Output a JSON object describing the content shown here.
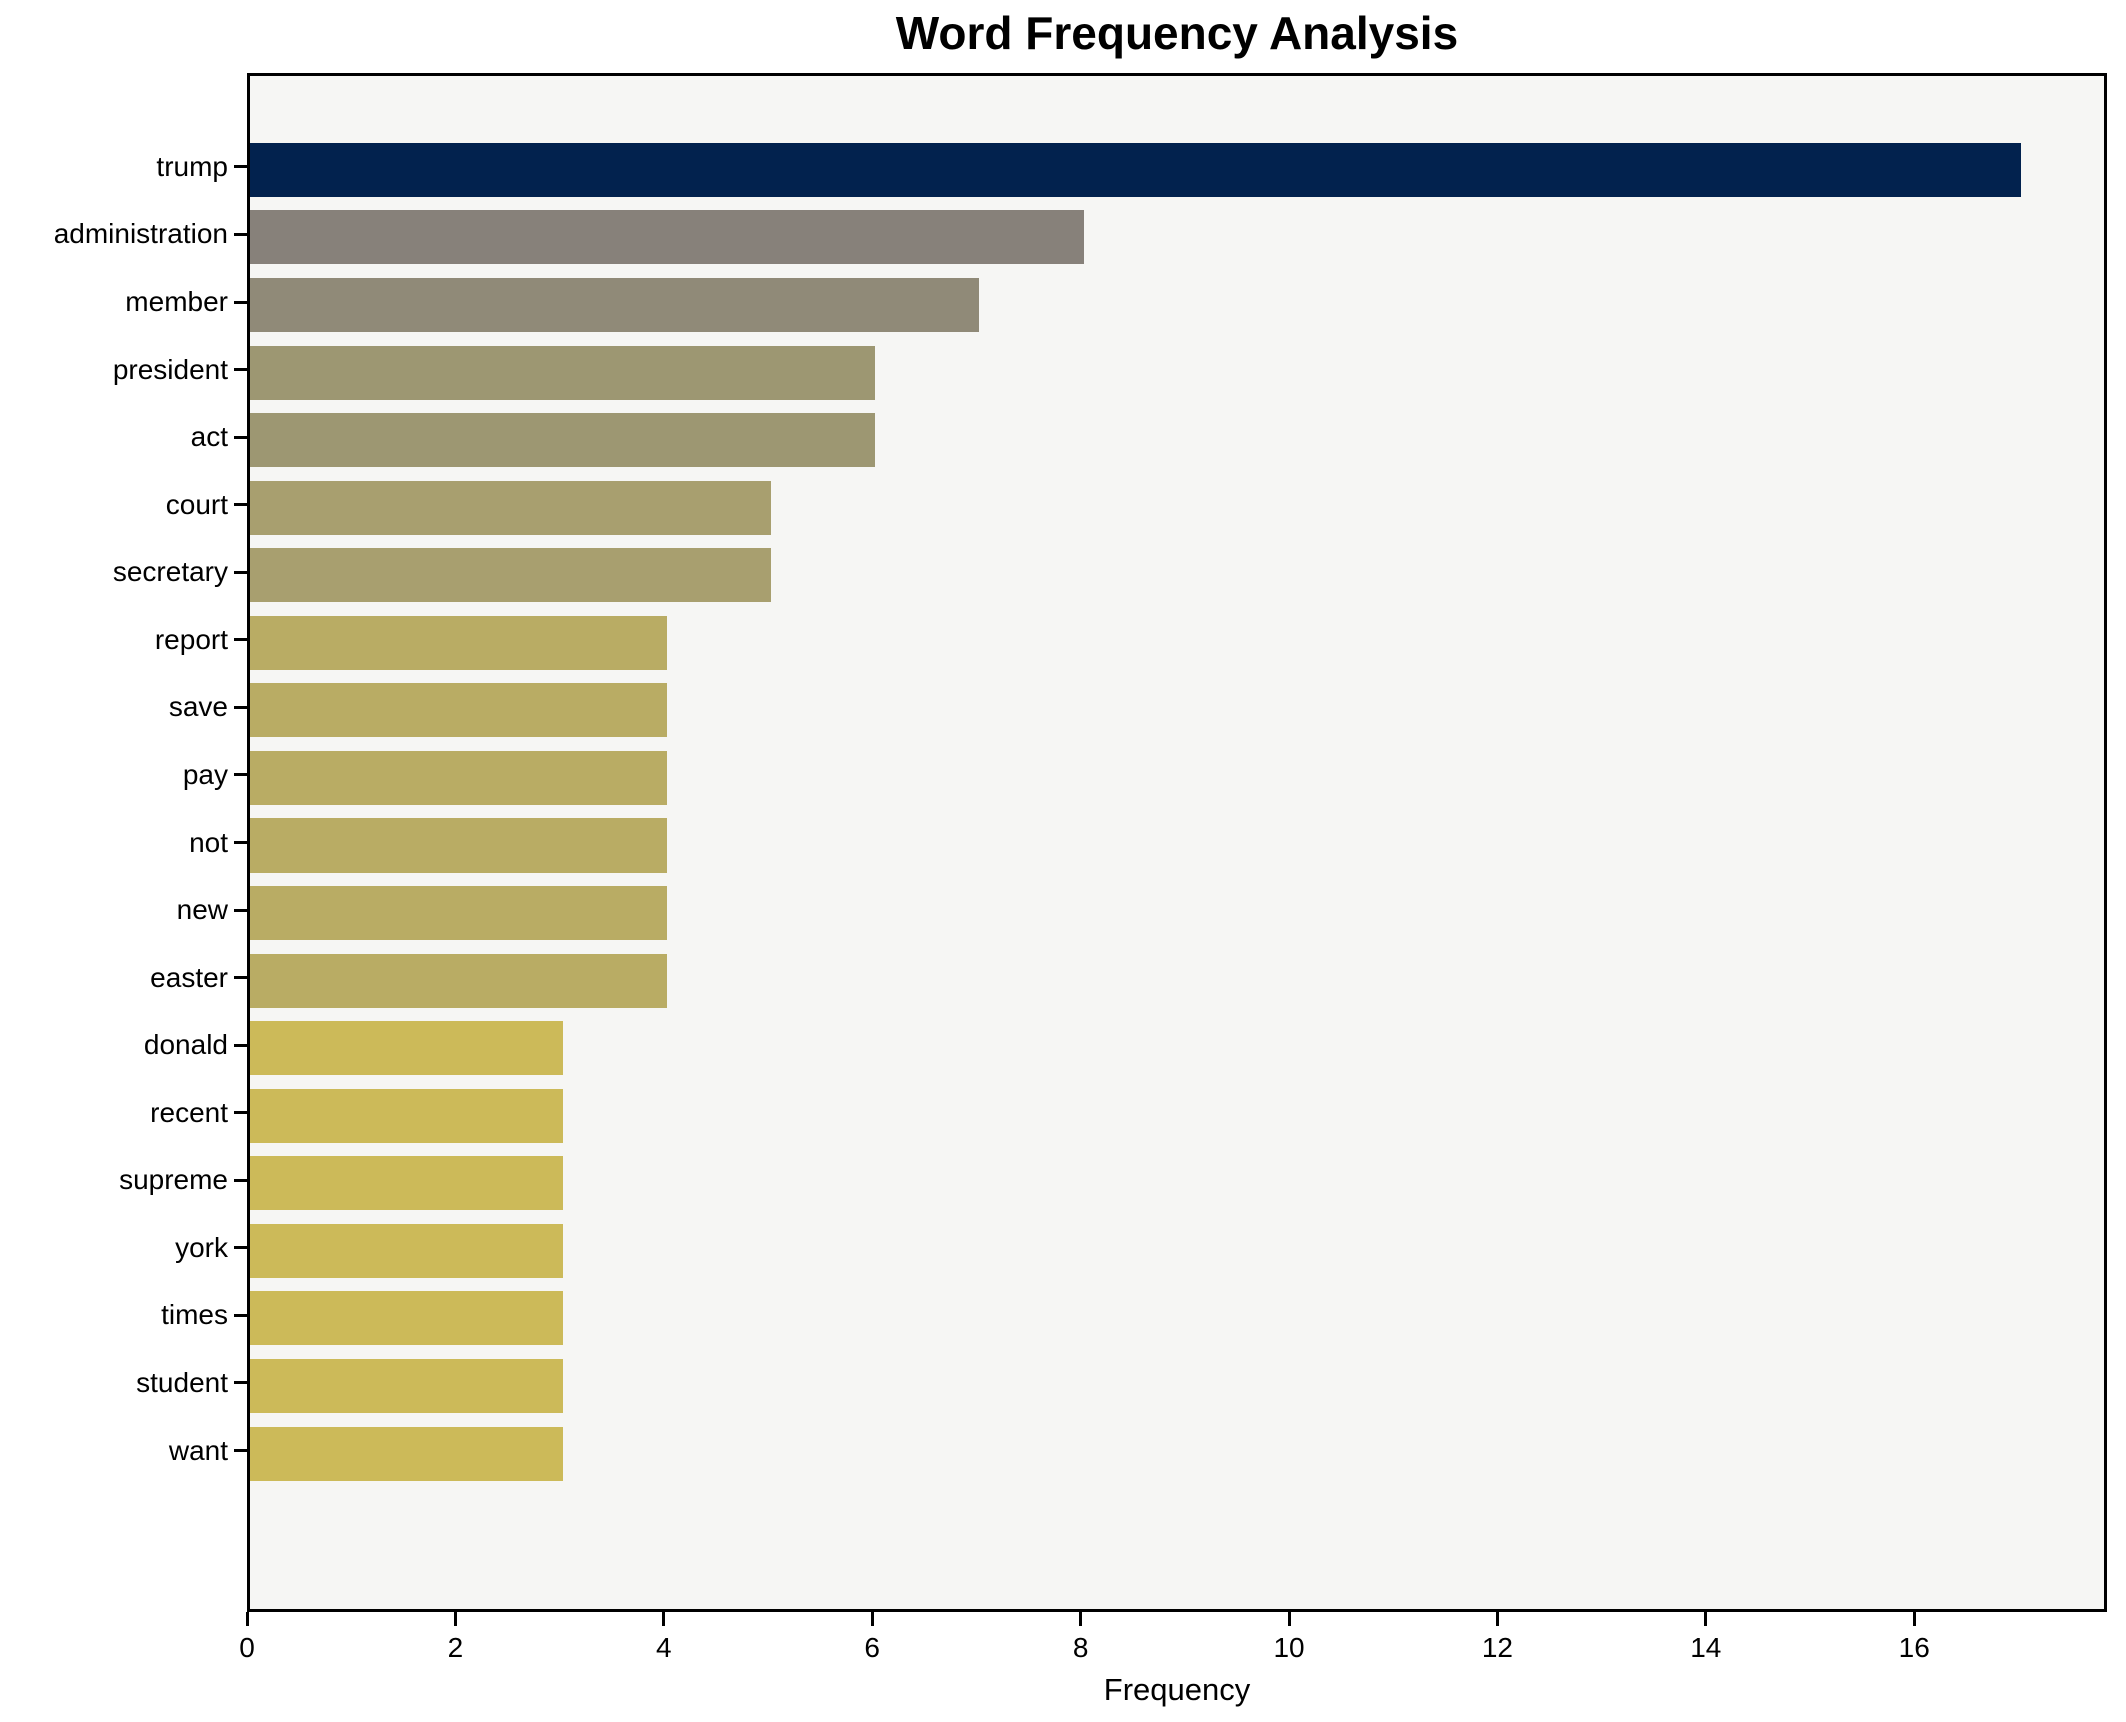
{
  "figure": {
    "background": "#ffffff",
    "plot_background": "#f6f6f4",
    "spine_color": "#000000",
    "text_color": "#000000"
  },
  "chart_data": {
    "type": "bar",
    "orientation": "horizontal",
    "title": "Word Frequency Analysis",
    "xlabel": "Frequency",
    "ylabel": "",
    "categories": [
      "trump",
      "administration",
      "member",
      "president",
      "act",
      "court",
      "secretary",
      "report",
      "save",
      "pay",
      "not",
      "new",
      "easter",
      "donald",
      "recent",
      "supreme",
      "york",
      "times",
      "student",
      "want"
    ],
    "values": [
      17,
      8,
      7,
      6,
      6,
      5,
      5,
      4,
      4,
      4,
      4,
      4,
      4,
      3,
      3,
      3,
      3,
      3,
      3,
      3
    ],
    "bar_colors": [
      "#02224E",
      "#87817A",
      "#908A78",
      "#9D9772",
      "#9D9772",
      "#A89F6F",
      "#A89F6F",
      "#B9AC64",
      "#B9AC64",
      "#B9AC64",
      "#B9AC64",
      "#B9AC64",
      "#B9AC64",
      "#CCBA59",
      "#CCBA59",
      "#CCBA59",
      "#CCBA59",
      "#CCBA59",
      "#CCBA59",
      "#CCBA59"
    ],
    "xlim": [
      0,
      17.85
    ],
    "xticks": [
      0,
      2,
      4,
      6,
      8,
      10,
      12,
      14,
      16
    ],
    "grid": false,
    "legend_position": "none"
  }
}
